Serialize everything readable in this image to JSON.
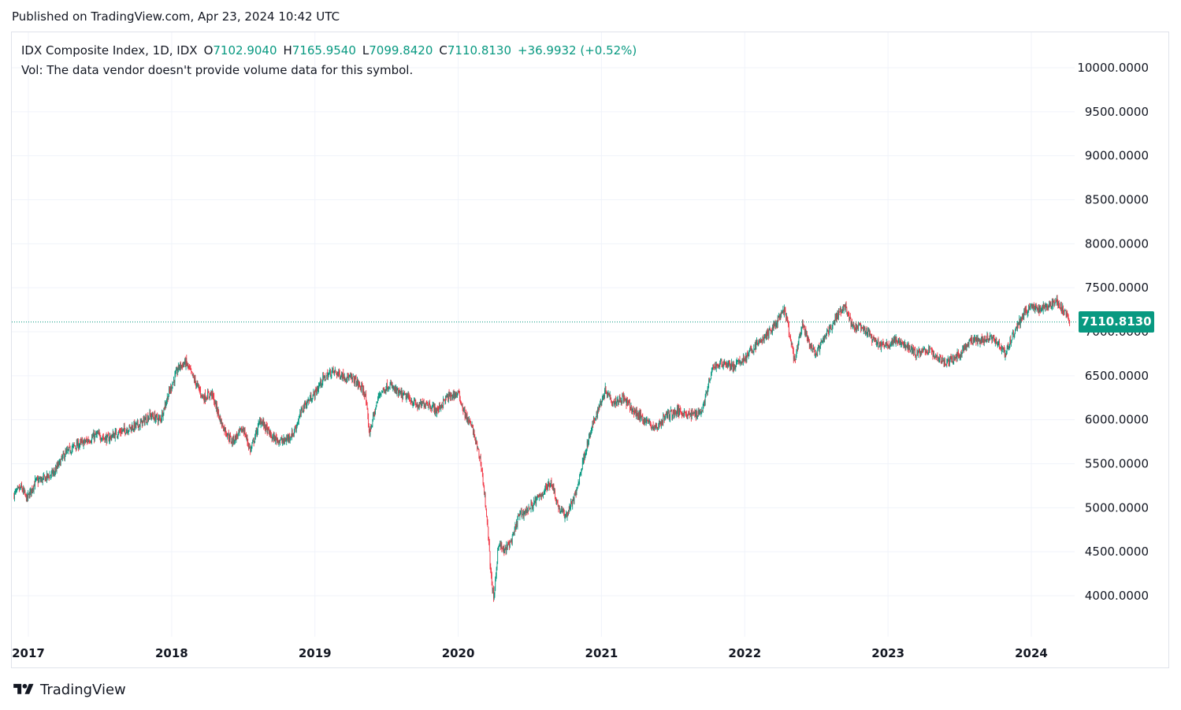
{
  "published": "Published on TradingView.com, Apr 23, 2024 10:42 UTC",
  "legend": {
    "symbol": "IDX Composite Index, 1D, IDX",
    "o_label": "O",
    "o_value": "7102.9040",
    "h_label": "H",
    "h_value": "7165.9540",
    "l_label": "L",
    "l_value": "7099.8420",
    "c_label": "C",
    "c_value": "7110.8130",
    "change": "+36.9932 (+0.52%)",
    "volume_note": "Vol: The data vendor doesn't provide volume data for this symbol."
  },
  "last_price": {
    "label": "7110.8130",
    "value": 7110.813
  },
  "footer": {
    "brand": "TradingView"
  },
  "colors": {
    "up": "#089981",
    "down": "#f23645",
    "grid": "#f0f3fa",
    "text": "#131722"
  },
  "chart_data": {
    "type": "candlestick",
    "interval": "1D",
    "y_ticks": [
      "4000.0000",
      "4500.0000",
      "5000.0000",
      "5500.0000",
      "6000.0000",
      "6500.0000",
      "7000.0000",
      "7500.0000",
      "8000.0000",
      "8500.0000",
      "9000.0000",
      "9500.0000",
      "10000.0000"
    ],
    "x_ticks": [
      {
        "label": "2017",
        "t": 2017.0
      },
      {
        "label": "2018",
        "t": 2018.0
      },
      {
        "label": "2019",
        "t": 2019.0
      },
      {
        "label": "2020",
        "t": 2020.0
      },
      {
        "label": "2021",
        "t": 2021.0
      },
      {
        "label": "2022",
        "t": 2022.0
      },
      {
        "label": "2023",
        "t": 2023.0
      },
      {
        "label": "2024",
        "t": 2024.0
      }
    ],
    "x_range": [
      2016.9,
      2024.95
    ],
    "y_range": [
      3700,
      10250
    ],
    "close_path": [
      [
        2016.9,
        5150
      ],
      [
        2016.95,
        5230
      ],
      [
        2016.99,
        5100
      ],
      [
        2017.05,
        5300
      ],
      [
        2017.1,
        5320
      ],
      [
        2017.18,
        5400
      ],
      [
        2017.25,
        5600
      ],
      [
        2017.32,
        5700
      ],
      [
        2017.4,
        5750
      ],
      [
        2017.48,
        5830
      ],
      [
        2017.55,
        5780
      ],
      [
        2017.62,
        5850
      ],
      [
        2017.7,
        5900
      ],
      [
        2017.78,
        5950
      ],
      [
        2017.85,
        6050
      ],
      [
        2017.92,
        6000
      ],
      [
        2017.98,
        6300
      ],
      [
        2018.05,
        6600
      ],
      [
        2018.1,
        6650
      ],
      [
        2018.15,
        6480
      ],
      [
        2018.22,
        6250
      ],
      [
        2018.28,
        6300
      ],
      [
        2018.35,
        5950
      ],
      [
        2018.42,
        5750
      ],
      [
        2018.5,
        5900
      ],
      [
        2018.55,
        5650
      ],
      [
        2018.62,
        6000
      ],
      [
        2018.7,
        5800
      ],
      [
        2018.78,
        5750
      ],
      [
        2018.85,
        5850
      ],
      [
        2018.92,
        6150
      ],
      [
        2019.0,
        6300
      ],
      [
        2019.05,
        6450
      ],
      [
        2019.12,
        6550
      ],
      [
        2019.2,
        6500
      ],
      [
        2019.28,
        6450
      ],
      [
        2019.35,
        6300
      ],
      [
        2019.38,
        5850
      ],
      [
        2019.45,
        6300
      ],
      [
        2019.52,
        6400
      ],
      [
        2019.58,
        6300
      ],
      [
        2019.65,
        6250
      ],
      [
        2019.72,
        6150
      ],
      [
        2019.78,
        6200
      ],
      [
        2019.85,
        6100
      ],
      [
        2019.92,
        6250
      ],
      [
        2020.0,
        6300
      ],
      [
        2020.05,
        6050
      ],
      [
        2020.1,
        5900
      ],
      [
        2020.16,
        5500
      ],
      [
        2020.2,
        4900
      ],
      [
        2020.23,
        4200
      ],
      [
        2020.25,
        3950
      ],
      [
        2020.28,
        4600
      ],
      [
        2020.32,
        4500
      ],
      [
        2020.38,
        4650
      ],
      [
        2020.42,
        4900
      ],
      [
        2020.5,
        5000
      ],
      [
        2020.58,
        5150
      ],
      [
        2020.65,
        5300
      ],
      [
        2020.7,
        5000
      ],
      [
        2020.75,
        4900
      ],
      [
        2020.82,
        5150
      ],
      [
        2020.88,
        5600
      ],
      [
        2020.95,
        6000
      ],
      [
        2021.03,
        6350
      ],
      [
        2021.08,
        6200
      ],
      [
        2021.15,
        6250
      ],
      [
        2021.22,
        6100
      ],
      [
        2021.3,
        6000
      ],
      [
        2021.38,
        5900
      ],
      [
        2021.45,
        6050
      ],
      [
        2021.55,
        6100
      ],
      [
        2021.62,
        6050
      ],
      [
        2021.7,
        6100
      ],
      [
        2021.78,
        6600
      ],
      [
        2021.85,
        6650
      ],
      [
        2021.92,
        6600
      ],
      [
        2022.0,
        6700
      ],
      [
        2022.08,
        6850
      ],
      [
        2022.15,
        6950
      ],
      [
        2022.22,
        7100
      ],
      [
        2022.28,
        7250
      ],
      [
        2022.32,
        6900
      ],
      [
        2022.35,
        6650
      ],
      [
        2022.4,
        7100
      ],
      [
        2022.45,
        6850
      ],
      [
        2022.5,
        6750
      ],
      [
        2022.58,
        7000
      ],
      [
        2022.65,
        7200
      ],
      [
        2022.7,
        7300
      ],
      [
        2022.75,
        7050
      ],
      [
        2022.8,
        7050
      ],
      [
        2022.85,
        7000
      ],
      [
        2022.9,
        6900
      ],
      [
        2022.95,
        6850
      ],
      [
        2023.0,
        6850
      ],
      [
        2023.05,
        6900
      ],
      [
        2023.12,
        6850
      ],
      [
        2023.2,
        6750
      ],
      [
        2023.28,
        6800
      ],
      [
        2023.35,
        6700
      ],
      [
        2023.42,
        6650
      ],
      [
        2023.5,
        6750
      ],
      [
        2023.58,
        6900
      ],
      [
        2023.65,
        6900
      ],
      [
        2023.72,
        6950
      ],
      [
        2023.78,
        6850
      ],
      [
        2023.82,
        6750
      ],
      [
        2023.88,
        7000
      ],
      [
        2023.95,
        7200
      ],
      [
        2024.0,
        7300
      ],
      [
        2024.05,
        7250
      ],
      [
        2024.12,
        7300
      ],
      [
        2024.18,
        7350
      ],
      [
        2024.22,
        7250
      ],
      [
        2024.27,
        7110
      ]
    ]
  }
}
